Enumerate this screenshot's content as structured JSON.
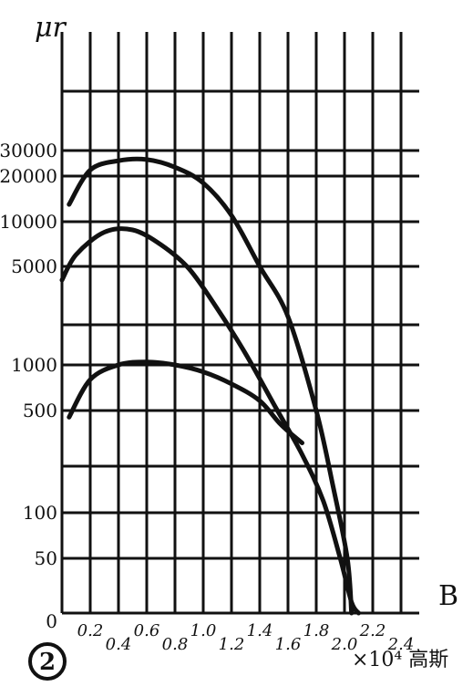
{
  "chart_data": {
    "type": "line",
    "title": "",
    "figure_label": "2",
    "ylabel": "μr",
    "xlabel": "B",
    "xunit_label": "×10⁴ 高斯",
    "ylim": [
      0,
      30000
    ],
    "xlim": [
      0,
      2.5
    ],
    "grid": true,
    "y_ticks": [
      "0",
      "50",
      "100",
      "500",
      "1000",
      "5000",
      "10000",
      "20000",
      "30000"
    ],
    "x_ticks": [
      "0",
      "0.2",
      "0.4",
      "0.6",
      "0.8",
      "1.0",
      "1.2",
      "1.4",
      "1.6",
      "1.8",
      "2.0",
      "2.2",
      "2.4"
    ],
    "series": [
      {
        "x": [
          0.05,
          0.2,
          0.4,
          0.6,
          0.8,
          1.0,
          1.2,
          1.4,
          1.6,
          1.8,
          1.92,
          2.02,
          2.05
        ],
        "y": [
          13000,
          22000,
          25500,
          26000,
          23000,
          18000,
          11000,
          5000,
          2200,
          500,
          150,
          50,
          0
        ]
      },
      {
        "x": [
          0.0,
          0.1,
          0.3,
          0.5,
          0.7,
          0.9,
          1.1,
          1.3,
          1.5,
          1.7,
          1.85,
          1.97,
          2.05,
          2.1
        ],
        "y": [
          4000,
          6000,
          8500,
          8800,
          7000,
          4800,
          2500,
          1200,
          550,
          250,
          120,
          50,
          10,
          0
        ]
      },
      {
        "x": [
          0.05,
          0.2,
          0.4,
          0.6,
          0.8,
          1.0,
          1.2,
          1.4,
          1.55,
          1.7
        ],
        "y": [
          450,
          800,
          1000,
          1050,
          1000,
          900,
          750,
          580,
          400,
          300
        ]
      }
    ]
  }
}
